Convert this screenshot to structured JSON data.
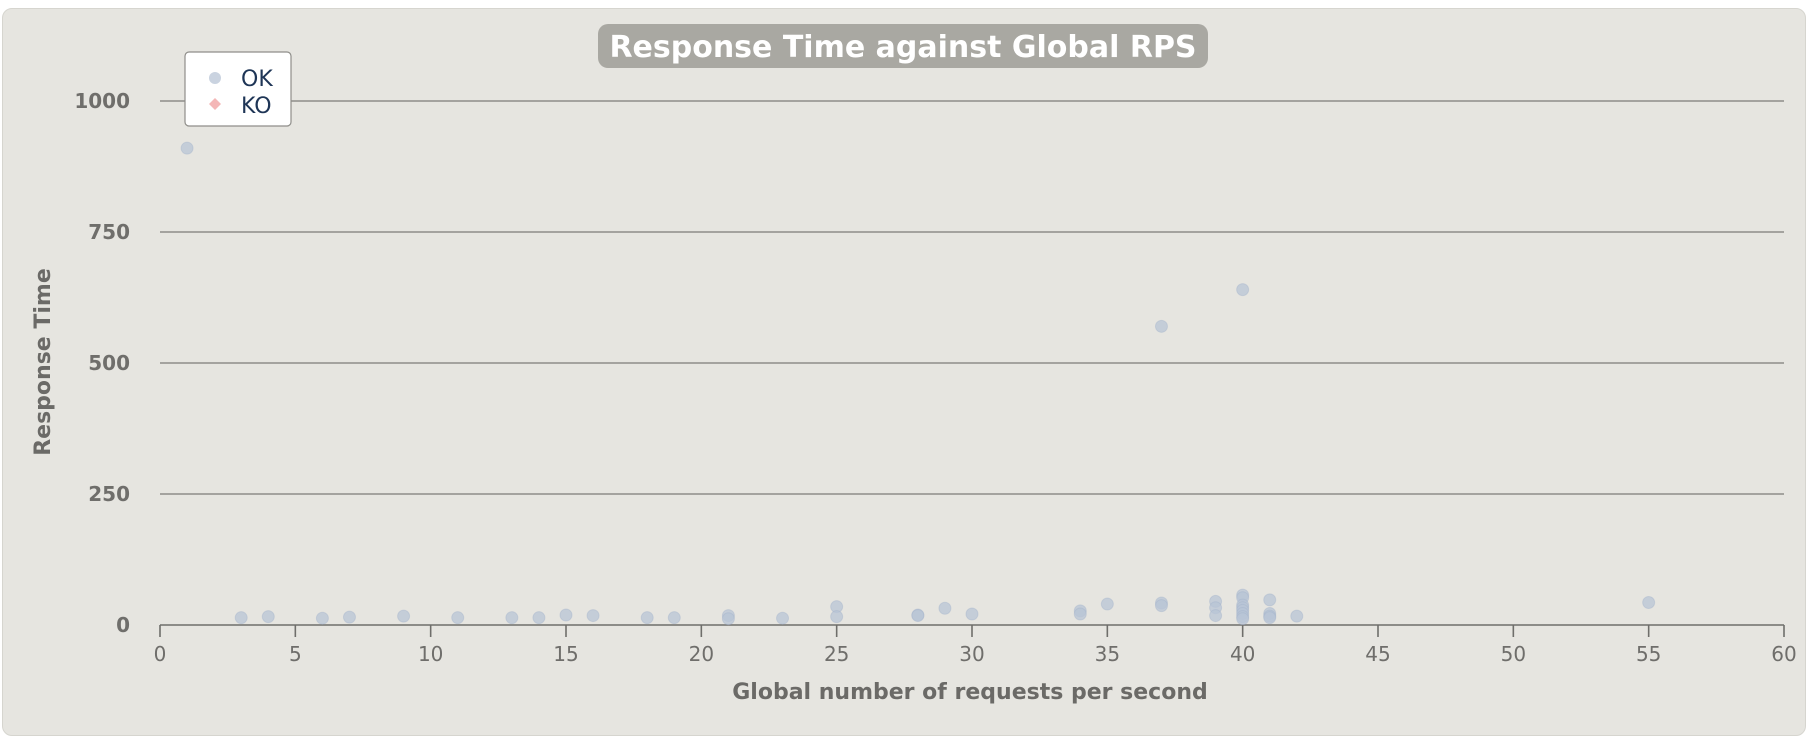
{
  "chart_data": {
    "type": "scatter",
    "title": "Response Time against Global RPS",
    "xlabel": "Global number of requests per second",
    "ylabel": "Response Time",
    "xlim": [
      0,
      60
    ],
    "ylim": [
      0,
      1000
    ],
    "x_ticks": [
      "0",
      "5",
      "10",
      "15",
      "20",
      "25",
      "30",
      "35",
      "40",
      "45",
      "50",
      "55",
      "60"
    ],
    "y_ticks": [
      "0",
      "250",
      "500",
      "750",
      "1000"
    ],
    "grid": "horizontal",
    "legend_position": "top-left",
    "colors": {
      "OK": "#b8c4d6",
      "KO": "#f4b6b6",
      "panel": "#e6e5e0",
      "title_bg": "#a9a8a2"
    },
    "series": [
      {
        "name": "OK",
        "points": [
          [
            1,
            910
          ],
          [
            3,
            14
          ],
          [
            4,
            16
          ],
          [
            6,
            13
          ],
          [
            7,
            15
          ],
          [
            9,
            17
          ],
          [
            11,
            14
          ],
          [
            13,
            14
          ],
          [
            14,
            14
          ],
          [
            15,
            19
          ],
          [
            16,
            18
          ],
          [
            18,
            14
          ],
          [
            19,
            14
          ],
          [
            21,
            18
          ],
          [
            21,
            12
          ],
          [
            23,
            13
          ],
          [
            25,
            35
          ],
          [
            25,
            16
          ],
          [
            28,
            19
          ],
          [
            28,
            18
          ],
          [
            29,
            32
          ],
          [
            30,
            21
          ],
          [
            34,
            27
          ],
          [
            34,
            21
          ],
          [
            35,
            40
          ],
          [
            37,
            570
          ],
          [
            37,
            42
          ],
          [
            37,
            37
          ],
          [
            39,
            45
          ],
          [
            39,
            33
          ],
          [
            39,
            18
          ],
          [
            40,
            640
          ],
          [
            40,
            57
          ],
          [
            40,
            52
          ],
          [
            40,
            38
          ],
          [
            40,
            33
          ],
          [
            40,
            28
          ],
          [
            40,
            22
          ],
          [
            40,
            16
          ],
          [
            40,
            12
          ],
          [
            41,
            48
          ],
          [
            41,
            22
          ],
          [
            41,
            17
          ],
          [
            41,
            14
          ],
          [
            42,
            17
          ],
          [
            55,
            43
          ]
        ]
      },
      {
        "name": "KO",
        "points": []
      }
    ]
  }
}
